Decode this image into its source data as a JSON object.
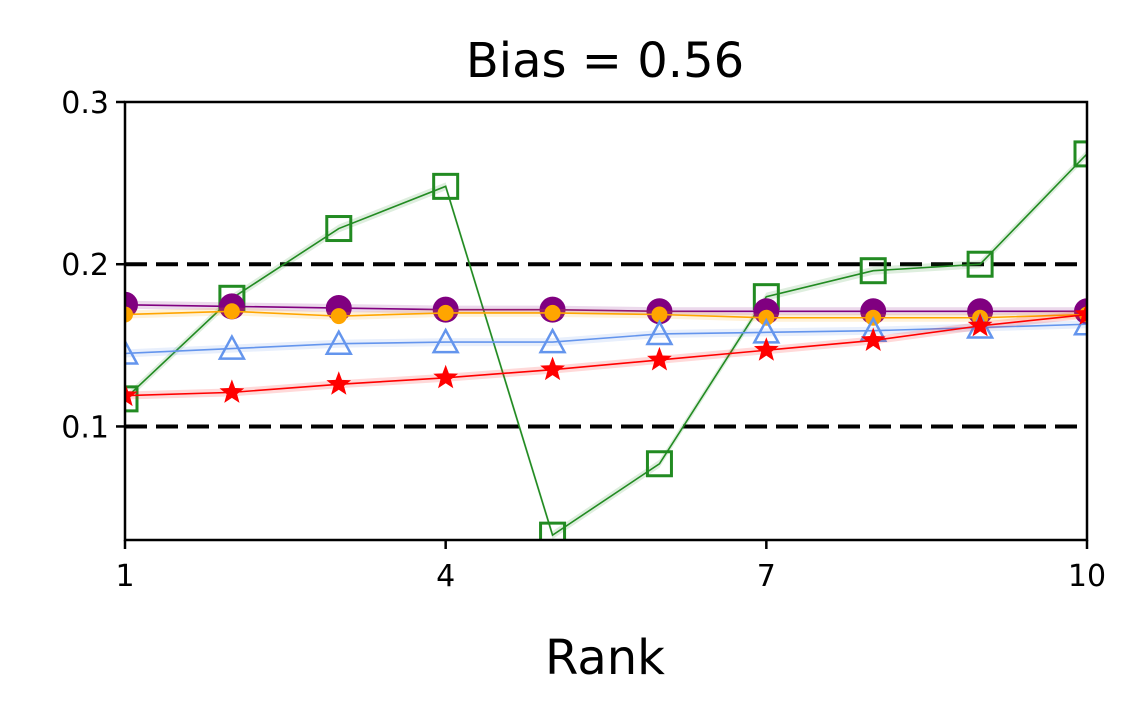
{
  "chart_data": {
    "type": "line",
    "title": "Bias = 0.56",
    "xlabel": "Rank",
    "ylabel": "",
    "xlim": [
      1,
      10
    ],
    "ylim": [
      0.03,
      0.3
    ],
    "xticks": [
      1,
      4,
      7,
      10
    ],
    "xtick_labels": [
      "1",
      "4",
      "7",
      "10"
    ],
    "yticks": [
      0.1,
      0.2,
      0.3
    ],
    "ytick_labels": [
      "0.1",
      "0.2",
      "0.3"
    ],
    "grid": false,
    "x": [
      1,
      2,
      3,
      4,
      5,
      6,
      7,
      8,
      9,
      10
    ],
    "reference_lines": [
      {
        "y": 0.2,
        "color": "#000000",
        "style": "dashed"
      },
      {
        "y": 0.1,
        "color": "#000000",
        "style": "dashed"
      }
    ],
    "series": [
      {
        "color": "#228B22",
        "marker": "square-open",
        "values": [
          0.117,
          0.179,
          0.222,
          0.248,
          0.033,
          0.077,
          0.18,
          0.196,
          0.2,
          0.268
        ]
      },
      {
        "color": "#800080",
        "marker": "circle-large",
        "values": [
          0.175,
          0.174,
          0.173,
          0.172,
          0.172,
          0.171,
          0.171,
          0.171,
          0.171,
          0.171
        ]
      },
      {
        "color": "#FFA500",
        "marker": "circle-small",
        "values": [
          0.169,
          0.171,
          0.168,
          0.17,
          0.17,
          0.169,
          0.167,
          0.167,
          0.167,
          0.169
        ]
      },
      {
        "color": "#6495ED",
        "marker": "triangle-open",
        "values": [
          0.145,
          0.148,
          0.151,
          0.152,
          0.152,
          0.157,
          0.158,
          0.159,
          0.161,
          0.163
        ]
      },
      {
        "color": "#FF0000",
        "marker": "star",
        "values": [
          0.119,
          0.121,
          0.126,
          0.13,
          0.135,
          0.141,
          0.147,
          0.153,
          0.162,
          0.169
        ]
      }
    ]
  }
}
